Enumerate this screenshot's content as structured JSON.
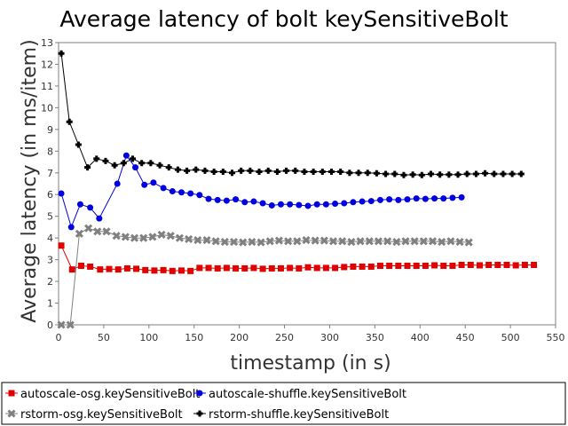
{
  "chart_data": {
    "type": "line",
    "title": "Average latency of bolt keySensitiveBolt",
    "xlabel": "timestamp (in s)",
    "ylabel": "Average latency (in ms/item)",
    "xlim": [
      0,
      550
    ],
    "ylim": [
      0,
      13
    ],
    "xticks": [
      0,
      50,
      100,
      150,
      200,
      250,
      300,
      350,
      400,
      450,
      500,
      550
    ],
    "yticks": [
      0,
      1,
      2,
      3,
      4,
      5,
      6,
      7,
      8,
      9,
      10,
      11,
      12,
      13
    ],
    "grid": false,
    "legend_position": "bottom",
    "series": [
      {
        "name": "autoscale-osg.keySensitiveBolt",
        "color": "#e00000",
        "marker": "square",
        "x": [
          3,
          15,
          25,
          35,
          46,
          56,
          66,
          76,
          86,
          96,
          106,
          116,
          126,
          136,
          146,
          156,
          166,
          176,
          186,
          196,
          206,
          216,
          226,
          236,
          246,
          256,
          266,
          276,
          286,
          296,
          306,
          316,
          326,
          336,
          346,
          356,
          366,
          376,
          386,
          396,
          406,
          416,
          426,
          436,
          446,
          456,
          466,
          476,
          486,
          496,
          506,
          516,
          526
        ],
        "y": [
          3.65,
          2.55,
          2.72,
          2.68,
          2.55,
          2.57,
          2.55,
          2.6,
          2.58,
          2.52,
          2.5,
          2.52,
          2.48,
          2.5,
          2.48,
          2.62,
          2.62,
          2.6,
          2.62,
          2.6,
          2.6,
          2.62,
          2.58,
          2.6,
          2.6,
          2.62,
          2.6,
          2.65,
          2.62,
          2.62,
          2.62,
          2.66,
          2.68,
          2.68,
          2.68,
          2.72,
          2.72,
          2.72,
          2.72,
          2.72,
          2.72,
          2.74,
          2.72,
          2.72,
          2.76,
          2.76,
          2.74,
          2.76,
          2.76,
          2.76,
          2.74,
          2.76,
          2.76
        ]
      },
      {
        "name": "autoscale-shuffle.keySensitiveBolt",
        "color": "#0000e0",
        "marker": "circle",
        "x": [
          3,
          14,
          24,
          35,
          45,
          65,
          75,
          85,
          95,
          105,
          116,
          126,
          136,
          146,
          156,
          166,
          176,
          186,
          196,
          206,
          216,
          226,
          236,
          246,
          256,
          266,
          276,
          286,
          296,
          306,
          316,
          326,
          336,
          346,
          356,
          366,
          376,
          386,
          396,
          406,
          416,
          426,
          436,
          446
        ],
        "y": [
          6.05,
          4.5,
          5.55,
          5.4,
          4.9,
          6.5,
          7.8,
          7.25,
          6.45,
          6.55,
          6.3,
          6.15,
          6.1,
          6.05,
          5.98,
          5.8,
          5.75,
          5.72,
          5.78,
          5.65,
          5.68,
          5.6,
          5.5,
          5.55,
          5.55,
          5.52,
          5.48,
          5.55,
          5.55,
          5.58,
          5.6,
          5.65,
          5.68,
          5.7,
          5.75,
          5.78,
          5.75,
          5.78,
          5.82,
          5.8,
          5.82,
          5.82,
          5.85,
          5.87
        ]
      },
      {
        "name": "rstorm-osg.keySensitiveBolt",
        "color": "#808080",
        "marker": "x",
        "x": [
          3,
          13,
          23,
          33,
          43,
          53,
          64,
          74,
          84,
          94,
          104,
          114,
          124,
          134,
          144,
          154,
          164,
          174,
          184,
          194,
          204,
          214,
          224,
          234,
          244,
          254,
          264,
          274,
          284,
          294,
          304,
          314,
          324,
          334,
          344,
          354,
          364,
          374,
          384,
          394,
          404,
          414,
          424,
          434,
          444,
          454
        ],
        "y": [
          0.0,
          0.0,
          4.2,
          4.45,
          4.3,
          4.3,
          4.1,
          4.05,
          4.0,
          4.0,
          4.05,
          4.15,
          4.1,
          4.0,
          3.95,
          3.9,
          3.9,
          3.85,
          3.82,
          3.82,
          3.8,
          3.82,
          3.8,
          3.85,
          3.88,
          3.85,
          3.85,
          3.9,
          3.88,
          3.88,
          3.85,
          3.85,
          3.82,
          3.85,
          3.85,
          3.85,
          3.85,
          3.82,
          3.85,
          3.85,
          3.85,
          3.85,
          3.82,
          3.85,
          3.82,
          3.8
        ]
      },
      {
        "name": "rstorm-shuffle.keySensitiveBolt",
        "color": "#000000",
        "marker": "plus",
        "x": [
          3,
          12,
          22,
          32,
          42,
          52,
          62,
          72,
          82,
          92,
          102,
          112,
          122,
          132,
          142,
          152,
          162,
          172,
          182,
          192,
          202,
          212,
          222,
          232,
          242,
          252,
          262,
          272,
          282,
          292,
          302,
          312,
          322,
          332,
          342,
          352,
          362,
          372,
          382,
          392,
          402,
          412,
          422,
          432,
          442,
          452,
          462,
          472,
          482,
          492,
          502,
          512
        ],
        "y": [
          12.5,
          9.35,
          8.3,
          7.25,
          7.65,
          7.55,
          7.35,
          7.45,
          7.65,
          7.45,
          7.45,
          7.35,
          7.25,
          7.15,
          7.1,
          7.15,
          7.1,
          7.05,
          7.05,
          7.0,
          7.1,
          7.1,
          7.05,
          7.1,
          7.05,
          7.1,
          7.1,
          7.05,
          7.05,
          7.05,
          7.05,
          7.05,
          7.0,
          7.0,
          7.0,
          6.98,
          6.95,
          6.95,
          6.9,
          6.92,
          6.9,
          6.95,
          6.92,
          6.92,
          6.92,
          6.95,
          6.95,
          6.98,
          6.95,
          6.95,
          6.95,
          6.95
        ]
      }
    ]
  }
}
